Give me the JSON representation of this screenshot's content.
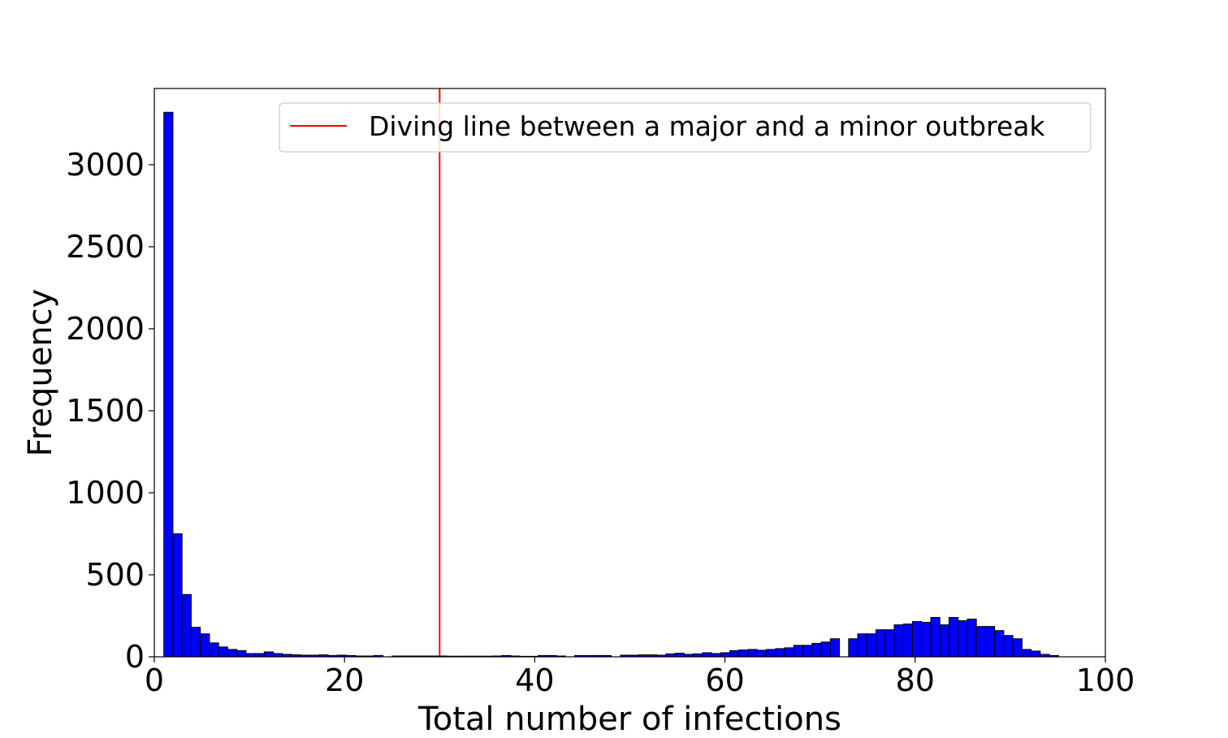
{
  "chart_data": {
    "type": "bar",
    "title": "",
    "xlabel": "Total number of infections",
    "ylabel": "Frequency",
    "xlim": [
      0,
      100
    ],
    "ylim": [
      0,
      3465
    ],
    "xticks": [
      0,
      20,
      40,
      60,
      80,
      100
    ],
    "yticks": [
      0,
      500,
      1000,
      1500,
      2000,
      2500,
      3000
    ],
    "grid": false,
    "legend_position": "top-right",
    "bar_color": "#0000ff",
    "bar_edge_color": "#000000",
    "bin_start": 1,
    "bin_width": 0.96,
    "values": [
      3320,
      750,
      380,
      180,
      140,
      85,
      60,
      45,
      38,
      20,
      20,
      30,
      20,
      15,
      12,
      10,
      10,
      12,
      8,
      10,
      8,
      5,
      5,
      8,
      0,
      5,
      5,
      5,
      5,
      5,
      5,
      4,
      4,
      4,
      4,
      4,
      5,
      8,
      5,
      3,
      3,
      8,
      8,
      5,
      0,
      8,
      8,
      8,
      8,
      0,
      10,
      10,
      12,
      12,
      10,
      18,
      22,
      15,
      18,
      25,
      20,
      25,
      38,
      42,
      45,
      40,
      45,
      50,
      55,
      70,
      70,
      82,
      90,
      110,
      0,
      110,
      140,
      140,
      165,
      165,
      195,
      200,
      215,
      210,
      240,
      195,
      240,
      220,
      230,
      185,
      185,
      160,
      130,
      110,
      45,
      35,
      15,
      8
    ],
    "series": [
      {
        "name": "Diving line between a major and a minor outbreak",
        "type": "vline",
        "x": 30,
        "color": "#ff0000"
      }
    ]
  }
}
